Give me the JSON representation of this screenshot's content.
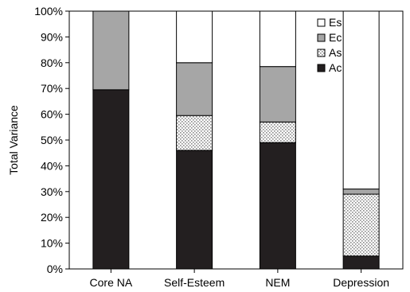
{
  "chart_data": {
    "type": "bar",
    "stacked": true,
    "categories": [
      "Core NA",
      "Self-Esteem",
      "NEM",
      "Depression"
    ],
    "series": [
      {
        "name": "Ac",
        "values": [
          69.5,
          46,
          49,
          5
        ],
        "color": "#231f20",
        "pattern": "solid"
      },
      {
        "name": "As",
        "values": [
          0,
          13.5,
          8,
          24
        ],
        "color": "#d9d9d9",
        "pattern": "dots"
      },
      {
        "name": "Ec",
        "values": [
          30.5,
          20.5,
          21.5,
          2
        ],
        "color": "#a6a6a6",
        "pattern": "solid"
      },
      {
        "name": "Es",
        "values": [
          0,
          20,
          21.5,
          69
        ],
        "color": "#ffffff",
        "pattern": "solid"
      }
    ],
    "legend_order": [
      "Es",
      "Ec",
      "As",
      "Ac"
    ],
    "ylabel": "Total Variance",
    "xlabel": "",
    "ylim": [
      0,
      100
    ],
    "yticks": [
      "0%",
      "10%",
      "20%",
      "30%",
      "40%",
      "50%",
      "60%",
      "70%",
      "80%",
      "90%",
      "100%"
    ],
    "legend_position": "top-right",
    "grid": false
  }
}
